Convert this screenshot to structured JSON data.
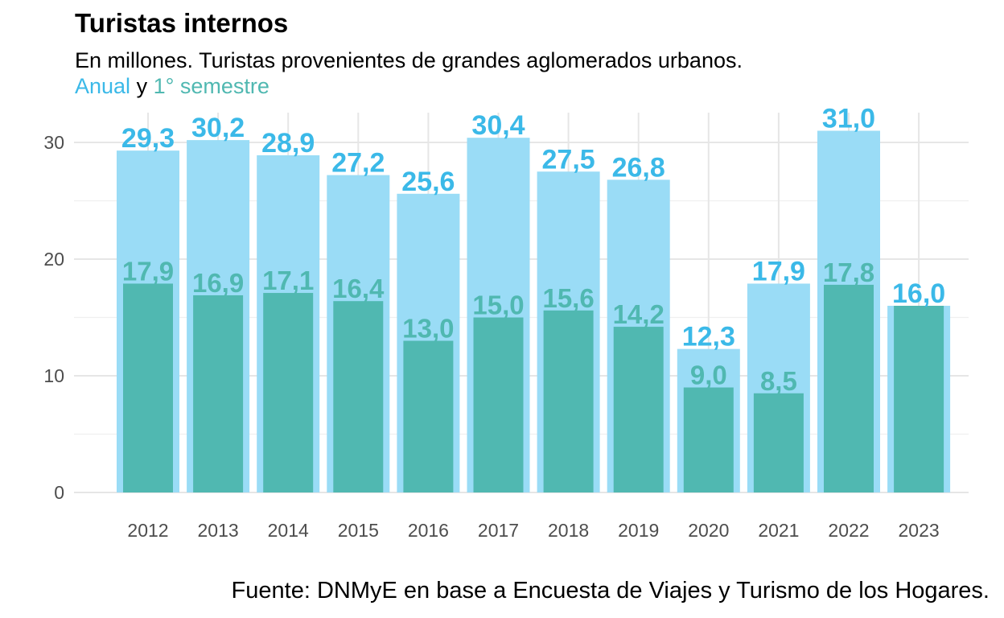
{
  "title": "Turistas internos",
  "subtitle": "En millones. Turistas provenientes de grandes aglomerados urbanos.",
  "legend": {
    "annual_label": "Anual",
    "connector": "y",
    "semester_label": "1° semestre"
  },
  "caption": "Fuente: DNMyE en base a Encuesta de Viajes y Turismo de los Hogares.",
  "colors": {
    "annual": "#9ADCF6",
    "annual_text": "#3BB9E8",
    "semester": "#50B8B1"
  },
  "chart_data": {
    "type": "bar",
    "categories": [
      "2012",
      "2013",
      "2014",
      "2015",
      "2016",
      "2017",
      "2018",
      "2019",
      "2020",
      "2021",
      "2022",
      "2023"
    ],
    "series": [
      {
        "name": "Anual",
        "values": [
          29.3,
          30.2,
          28.9,
          27.2,
          25.6,
          30.4,
          27.5,
          26.8,
          12.3,
          17.9,
          31.0,
          16.0
        ]
      },
      {
        "name": "1° semestre",
        "values": [
          17.9,
          16.9,
          17.1,
          16.4,
          13.0,
          15.0,
          15.6,
          14.2,
          9.0,
          8.5,
          17.8,
          16.0
        ]
      }
    ],
    "annual_labels": [
      "29,3",
      "30,2",
      "28,9",
      "27,2",
      "25,6",
      "30,4",
      "27,5",
      "26,8",
      "12,3",
      "17,9",
      "31,0",
      "16,0"
    ],
    "semester_labels": [
      "17,9",
      "16,9",
      "17,1",
      "16,4",
      "13,0",
      "15,0",
      "15,6",
      "14,2",
      "9,0",
      "8,5",
      "17,8",
      ""
    ],
    "y_ticks": [
      0,
      10,
      20,
      30
    ],
    "ylim": [
      0,
      32
    ],
    "grid": true,
    "overlay": true
  }
}
